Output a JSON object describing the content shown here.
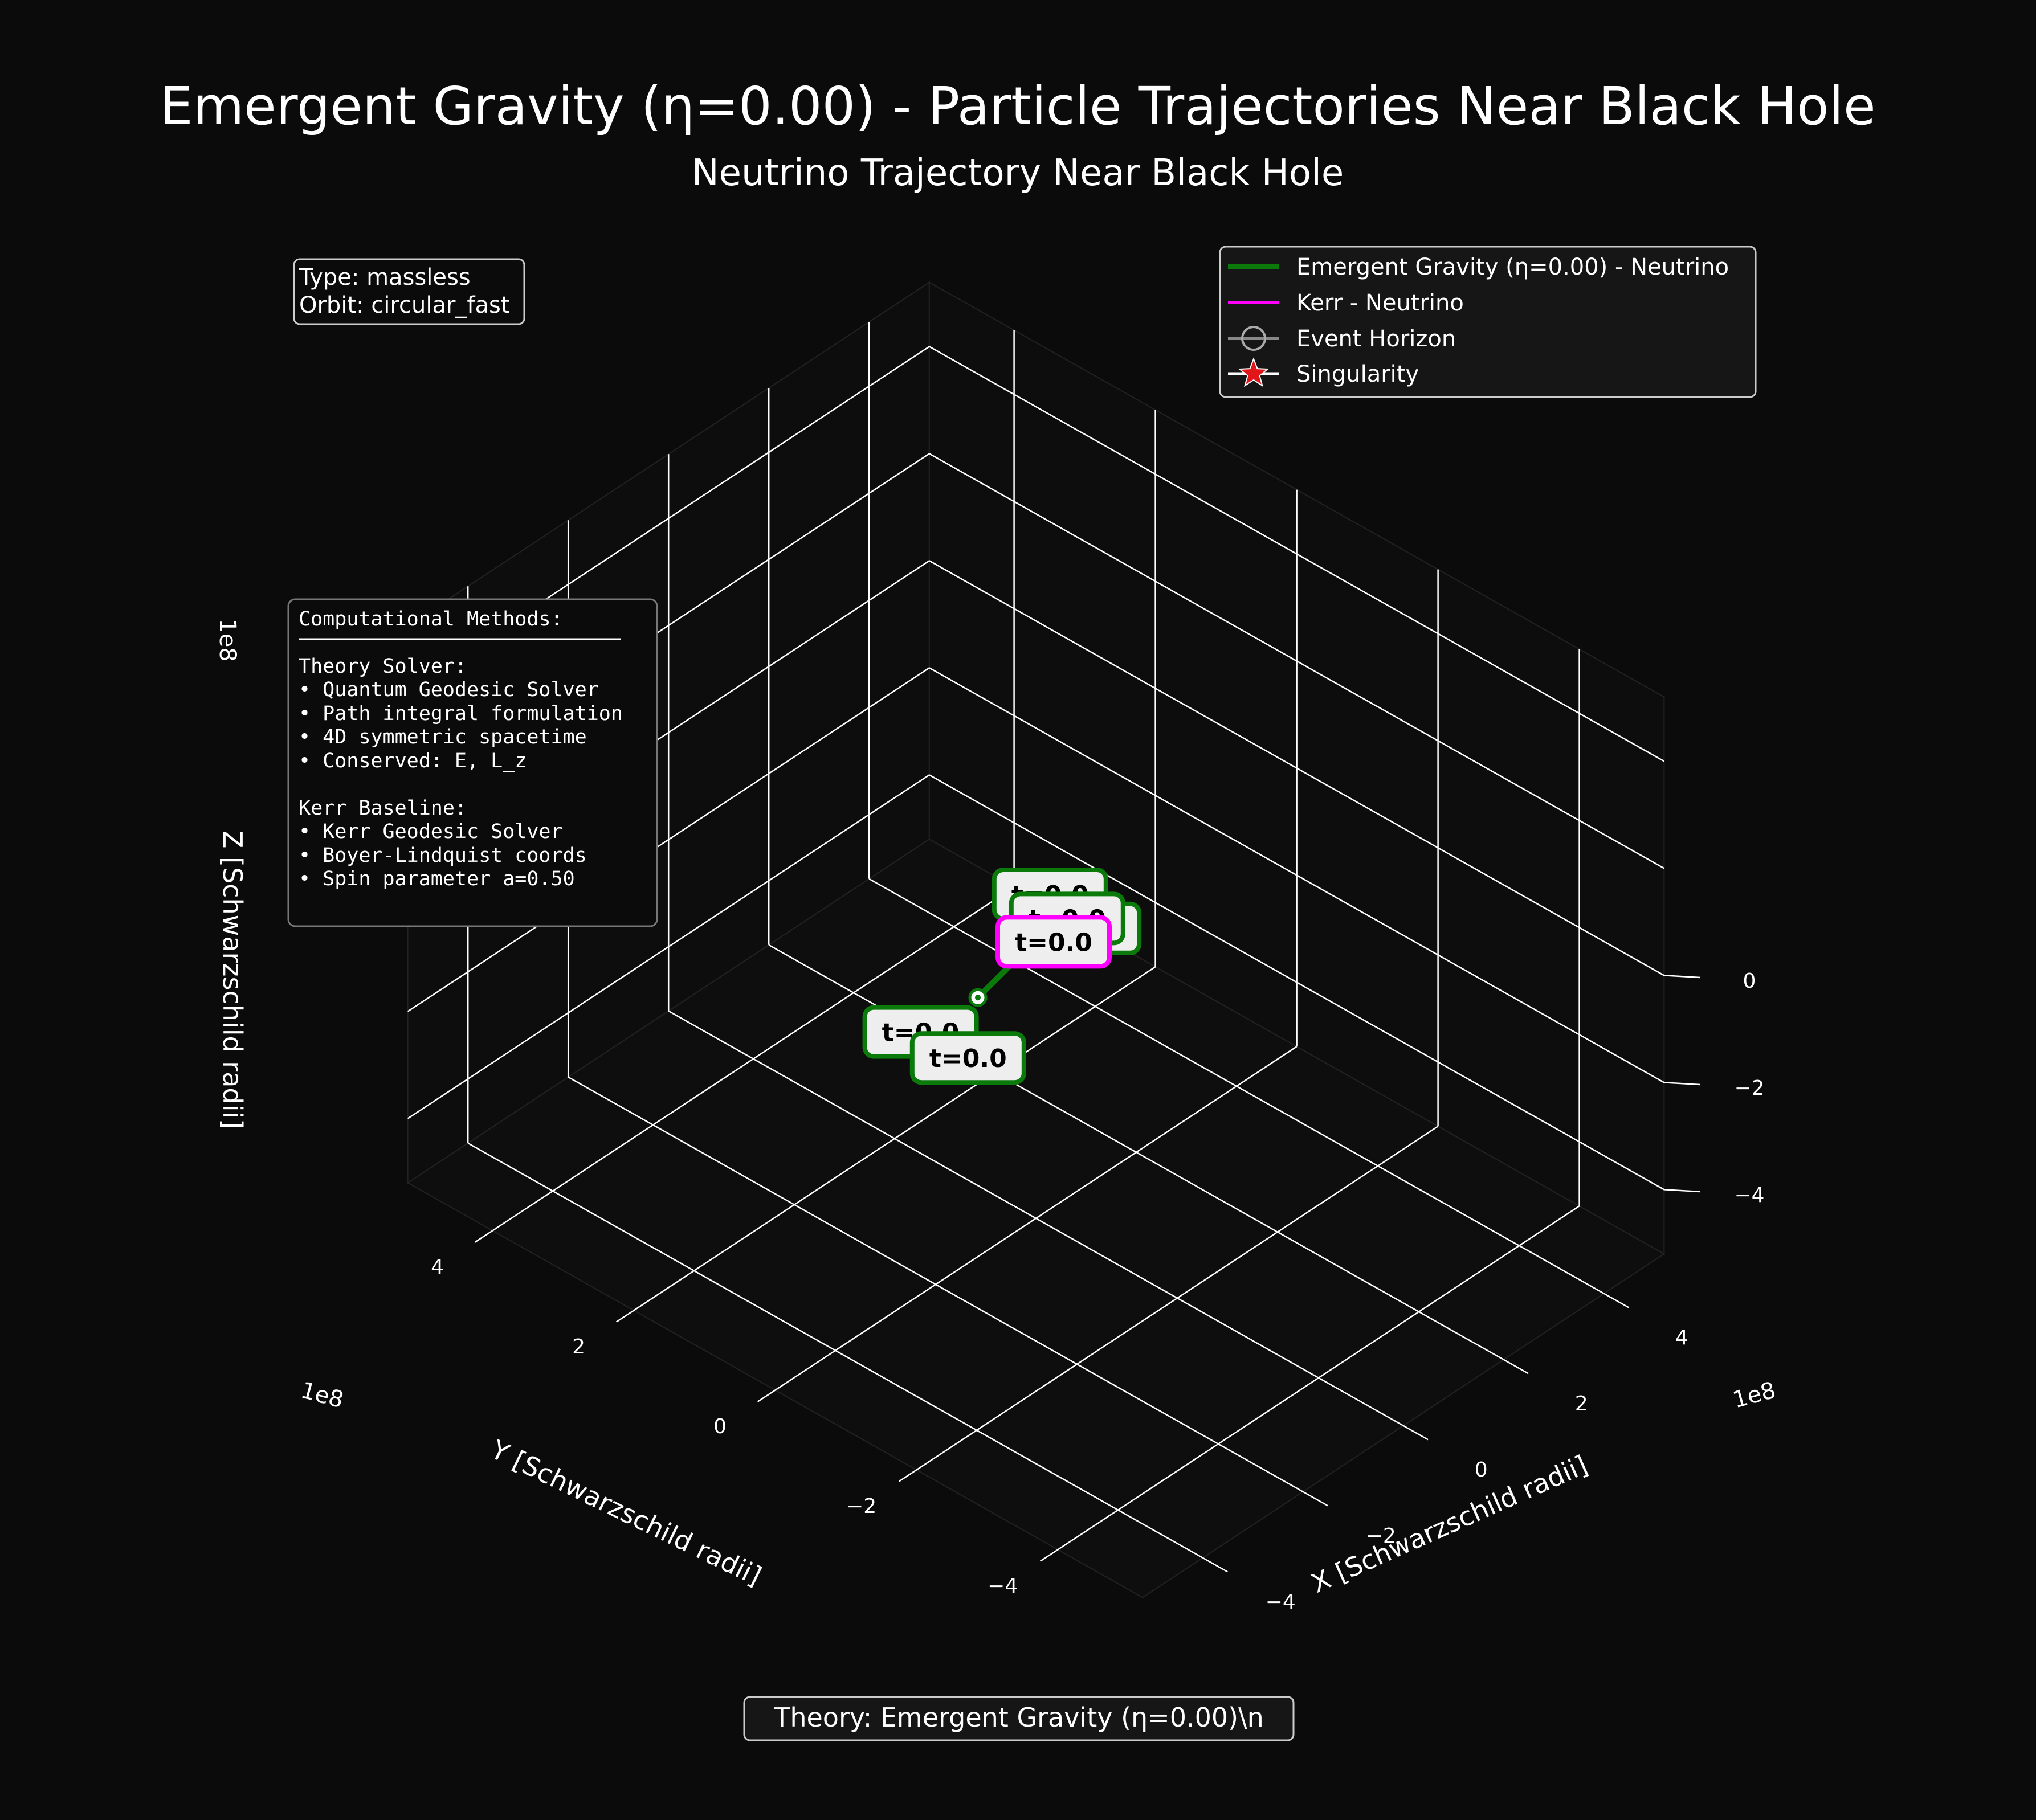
{
  "title": "Emergent Gravity (η=0.00) - Particle Trajectories Near Black Hole",
  "subtitle": "Neutrino Trajectory Near Black Hole",
  "info_box": [
    "Type: massless",
    "Orbit: circular_fast"
  ],
  "methods_box": {
    "heading": "Computational Methods:",
    "lines": [
      "Theory Solver:",
      "• Quantum Geodesic Solver",
      "• Path integral formulation",
      "• 4D symmetric spacetime",
      "• Conserved: E, L_z",
      "",
      "Kerr Baseline:",
      "• Kerr Geodesic Solver",
      "• Boyer-Lindquist coords",
      "• Spin parameter a=0.50"
    ]
  },
  "footer": "Theory: Emergent Gravity (η=0.00)\\n",
  "colors": {
    "background": "#0b0b0b",
    "theory": "#0a7a0a",
    "kerr": "#ff00ff",
    "horizon": "#aaaaaa",
    "singularity": "#e0161b",
    "grid": "#ffffff"
  },
  "chart_data": {
    "type": "line",
    "projection": "3d",
    "title": "Neutrino Trajectory Near Black Hole",
    "xlabel": "X [Schwarzschild radii]",
    "ylabel": "Y [Schwarzschild radii]",
    "zlabel": "Z [Schwarzschild radii]",
    "axis_multiplier": "1e8",
    "xlim": [
      -5.2,
      5.2
    ],
    "ylim": [
      -5.2,
      5.2
    ],
    "zlim": [
      -5.2,
      5.2
    ],
    "xticks": [
      -4,
      -2,
      0,
      2,
      4
    ],
    "yticks": [
      -4,
      -2,
      0,
      2,
      4
    ],
    "zticks": [
      -4,
      -2,
      0
    ],
    "xtick_labels": [
      "−4",
      "−2",
      "0",
      "2",
      "4"
    ],
    "ytick_labels": [
      "−4",
      "−2",
      "0",
      "2",
      "4"
    ],
    "ztick_labels": [
      "−4",
      "−2",
      "0"
    ],
    "grid": true,
    "legend_position": "top-right",
    "legend": [
      {
        "label": "Emergent Gravity (η=0.00) - Neutrino",
        "kind": "line",
        "color": "#0a7a0a"
      },
      {
        "label": "Kerr - Neutrino",
        "kind": "line",
        "color": "#ff00ff"
      },
      {
        "label": "Event Horizon",
        "kind": "circle",
        "color": "#aaaaaa"
      },
      {
        "label": "Singularity",
        "kind": "star",
        "color": "#e0161b"
      }
    ],
    "series": [
      {
        "name": "Emergent Gravity (η=0.00) - Neutrino",
        "color": "#0a7a0a",
        "points": [
          {
            "x": -0.1,
            "y": -1.3,
            "z": -0.2
          },
          {
            "x": 0.0,
            "y": 0.0,
            "z": 0.0
          }
        ]
      },
      {
        "name": "Kerr - Neutrino",
        "color": "#ff00ff",
        "points": [
          {
            "x": 0.0,
            "y": 0.0,
            "z": 0.0
          }
        ]
      }
    ],
    "annotations": [
      {
        "text": "t=0.0",
        "series": "theory",
        "x": 0.0,
        "y": -2.3,
        "z": -0.3
      },
      {
        "text": "t=0.0",
        "series": "theory",
        "x": -0.6,
        "y": -2.2,
        "z": -0.4
      },
      {
        "text": "t=0.0",
        "series": "theory",
        "x": -0.2,
        "y": 0.0,
        "z": 1.0
      },
      {
        "text": "t=0.0",
        "series": "theory",
        "x": -0.6,
        "y": 0.1,
        "z": 0.6
      },
      {
        "text": "t=0.0",
        "series": "theory",
        "x": -0.3,
        "y": 0.2,
        "z": 0.5
      },
      {
        "text": "t=0.0",
        "series": "kerr",
        "x": -0.25,
        "y": 0.0,
        "z": 0.15
      }
    ]
  }
}
